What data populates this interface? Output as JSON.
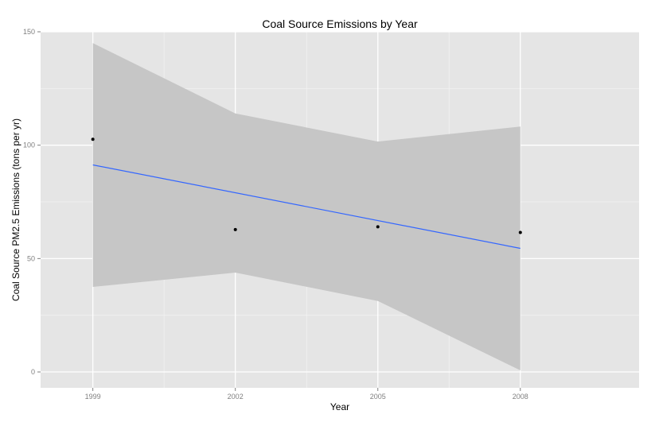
{
  "chart_data": {
    "type": "scatter",
    "title": "Coal Source Emissions by Year",
    "xlabel": "Year",
    "ylabel": "Coal Source PM2.5 Emissions (tons per yr)",
    "x_ticks": [
      "1999",
      "2002",
      "2005",
      "2008"
    ],
    "y_ticks": [
      "0",
      "50",
      "100",
      "150"
    ],
    "xlim": [
      1997.9,
      2010.5
    ],
    "ylim": [
      -7,
      150
    ],
    "grid": true,
    "points": {
      "x": [
        1999,
        2002,
        2005,
        2008
      ],
      "y": [
        102.6,
        62.8,
        64.0,
        61.5
      ]
    },
    "fit_line": {
      "x": [
        1999,
        2008
      ],
      "y": [
        91.3,
        54.5
      ]
    },
    "confidence_band": {
      "x": [
        1999,
        2002,
        2005,
        2008
      ],
      "upper": [
        145,
        114,
        101.6,
        108.2
      ],
      "lower": [
        37.5,
        43.8,
        31.3,
        0.7
      ]
    },
    "colors": {
      "panel": "#e5e5e5",
      "grid_major": "#ffffff",
      "grid_minor": "#f2f2f2",
      "band": "#c6c6c6",
      "fit_line": "#3366ff",
      "points": "#000000"
    }
  }
}
